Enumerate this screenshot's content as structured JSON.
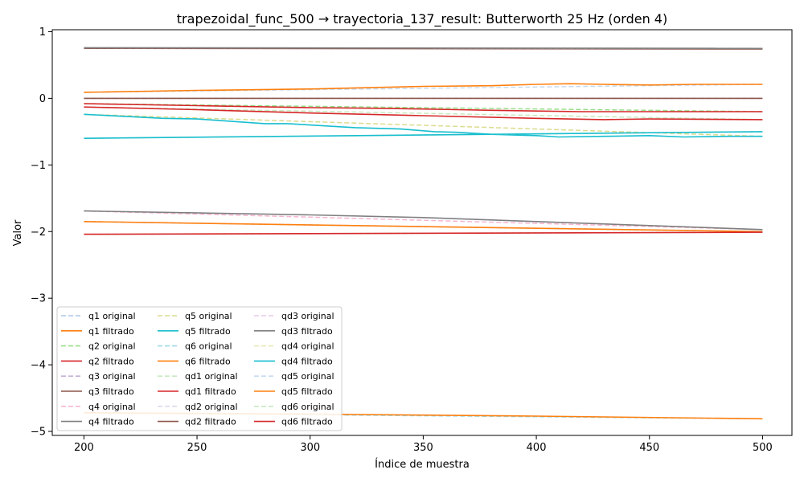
{
  "chart_data": {
    "type": "line",
    "title": "trapezoidal_func_500 → trayectoria_137_result: Butterworth 25 Hz (orden 4)",
    "xlabel": "Índice de muestra",
    "ylabel": "Valor",
    "xlim": [
      186,
      513
    ],
    "ylim": [
      -5.06,
      1.03
    ],
    "xticks": [
      200,
      250,
      300,
      350,
      400,
      450,
      500
    ],
    "yticks": [
      1,
      0,
      -1,
      -2,
      -3,
      -4,
      -5
    ],
    "ytick_labels": [
      "1",
      "0",
      "−1",
      "−2",
      "−3",
      "−4",
      "−5"
    ],
    "grid": false,
    "legend_position": "lower-left",
    "legend_columns": 3,
    "series": [
      {
        "name": "q1 original",
        "color": "#aec7e8",
        "dashed": true,
        "x": [
          200,
          500
        ],
        "y": [
          -1.85,
          -2.0
        ]
      },
      {
        "name": "q1 filtrado",
        "color": "#ff7f0e",
        "dashed": false,
        "x": [
          200,
          500
        ],
        "y": [
          -1.85,
          -2.0
        ]
      },
      {
        "name": "q2 original",
        "color": "#98df8a",
        "dashed": true,
        "x": [
          200,
          500
        ],
        "y": [
          -0.08,
          -0.2
        ]
      },
      {
        "name": "q2 filtrado",
        "color": "#d62728",
        "dashed": false,
        "x": [
          200,
          250,
          300,
          330,
          350,
          365,
          380,
          400,
          420,
          450,
          475,
          500
        ],
        "y": [
          -0.08,
          -0.11,
          -0.14,
          -0.15,
          -0.16,
          -0.17,
          -0.18,
          -0.19,
          -0.2,
          -0.2,
          -0.2,
          -0.2
        ]
      },
      {
        "name": "q3 original",
        "color": "#c5b0d5",
        "dashed": true,
        "x": [
          200,
          500
        ],
        "y": [
          0.0,
          0.0
        ]
      },
      {
        "name": "q3 filtrado",
        "color": "#8c564b",
        "dashed": false,
        "x": [
          200,
          500
        ],
        "y": [
          0.0,
          0.0
        ]
      },
      {
        "name": "q4 original",
        "color": "#f7b6d2",
        "dashed": true,
        "x": [
          200,
          500
        ],
        "y": [
          -1.69,
          -1.97
        ]
      },
      {
        "name": "q4 filtrado",
        "color": "#7f7f7f",
        "dashed": false,
        "x": [
          200,
          300,
          350,
          400,
          450,
          500
        ],
        "y": [
          -1.69,
          -1.75,
          -1.79,
          -1.85,
          -1.91,
          -1.97
        ]
      },
      {
        "name": "q5 original",
        "color": "#dbdb8d",
        "dashed": true,
        "x": [
          200,
          500
        ],
        "y": [
          -0.24,
          -0.57
        ]
      },
      {
        "name": "q5 filtrado",
        "color": "#17becf",
        "dashed": false,
        "x": [
          200,
          235,
          250,
          280,
          290,
          320,
          340,
          355,
          365,
          380,
          400,
          410,
          430,
          450,
          465,
          485,
          500
        ],
        "y": [
          -0.24,
          -0.3,
          -0.31,
          -0.38,
          -0.38,
          -0.44,
          -0.46,
          -0.5,
          -0.51,
          -0.54,
          -0.56,
          -0.58,
          -0.57,
          -0.56,
          -0.58,
          -0.57,
          -0.57
        ]
      },
      {
        "name": "q6 original",
        "color": "#9edae5",
        "dashed": true,
        "x": [
          200,
          500
        ],
        "y": [
          -4.72,
          -4.81
        ]
      },
      {
        "name": "q6 filtrado",
        "color": "#ff7f0e",
        "dashed": false,
        "x": [
          200,
          300,
          400,
          500
        ],
        "y": [
          -4.72,
          -4.74,
          -4.77,
          -4.81
        ]
      },
      {
        "name": "qd1 original",
        "color": "#c7e9c0",
        "dashed": true,
        "x": [
          200,
          500
        ],
        "y": [
          -2.04,
          -2.01
        ]
      },
      {
        "name": "qd1 filtrado",
        "color": "#d62728",
        "dashed": false,
        "x": [
          200,
          500
        ],
        "y": [
          -2.04,
          -2.01
        ]
      },
      {
        "name": "qd2 original",
        "color": "#dadaeb",
        "dashed": true,
        "x": [
          200,
          500
        ],
        "y": [
          0.75,
          0.74
        ]
      },
      {
        "name": "qd2 filtrado",
        "color": "#8c564b",
        "dashed": false,
        "x": [
          200,
          500
        ],
        "y": [
          0.75,
          0.74
        ]
      },
      {
        "name": "qd3 original",
        "color": "#e7cbe7",
        "dashed": true,
        "x": [
          200,
          500
        ],
        "y": [
          0.76,
          0.75
        ]
      },
      {
        "name": "qd3 filtrado",
        "color": "#7f7f7f",
        "dashed": false,
        "x": [
          200,
          500
        ],
        "y": [
          0.76,
          0.75
        ]
      },
      {
        "name": "qd4 original",
        "color": "#e7e7b5",
        "dashed": true,
        "x": [
          200,
          500
        ],
        "y": [
          -0.6,
          -0.5
        ]
      },
      {
        "name": "qd4 filtrado",
        "color": "#17becf",
        "dashed": false,
        "x": [
          200,
          500
        ],
        "y": [
          -0.6,
          -0.5
        ]
      },
      {
        "name": "qd5 original",
        "color": "#c6dbef",
        "dashed": true,
        "x": [
          200,
          500
        ],
        "y": [
          0.09,
          0.21
        ]
      },
      {
        "name": "qd5 filtrado",
        "color": "#ff7f0e",
        "dashed": false,
        "x": [
          200,
          250,
          300,
          350,
          380,
          400,
          415,
          430,
          450,
          470,
          500
        ],
        "y": [
          0.09,
          0.12,
          0.14,
          0.18,
          0.19,
          0.21,
          0.22,
          0.21,
          0.2,
          0.21,
          0.21
        ]
      },
      {
        "name": "qd6 original",
        "color": "#c7e9c0",
        "dashed": true,
        "x": [
          200,
          500
        ],
        "y": [
          -0.13,
          -0.32
        ]
      },
      {
        "name": "qd6 filtrado",
        "color": "#d62728",
        "dashed": false,
        "x": [
          200,
          250,
          300,
          350,
          400,
          430,
          450,
          500
        ],
        "y": [
          -0.13,
          -0.17,
          -0.22,
          -0.26,
          -0.3,
          -0.32,
          -0.31,
          -0.32
        ]
      }
    ]
  }
}
